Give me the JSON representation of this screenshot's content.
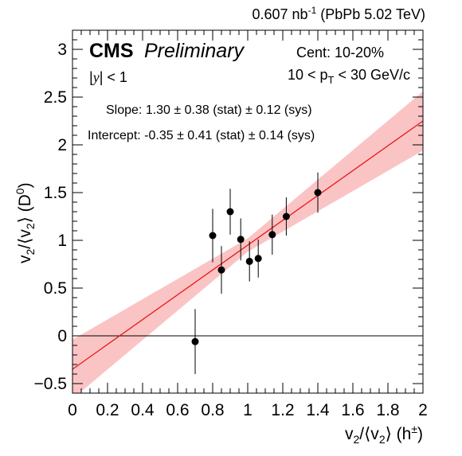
{
  "chart_data": {
    "type": "scatter",
    "title": "",
    "xlabel": "v2/⟨v2⟩ (h±)",
    "ylabel": "v2/⟨v2⟩ (D0)",
    "xlim": [
      0,
      2
    ],
    "ylim": [
      -0.6,
      3.2
    ],
    "x_ticks": [
      "0",
      "0.2",
      "0.4",
      "0.6",
      "0.8",
      "1",
      "1.2",
      "1.4",
      "1.6",
      "1.8",
      "2"
    ],
    "y_ticks": [
      "−0.5",
      "0",
      "0.5",
      "1",
      "1.5",
      "2",
      "2.5",
      "3"
    ],
    "grid": false,
    "points": [
      {
        "x": 0.7,
        "y": -0.06,
        "err": 0.34
      },
      {
        "x": 0.8,
        "y": 1.05,
        "err": 0.28
      },
      {
        "x": 0.85,
        "y": 0.69,
        "err": 0.25
      },
      {
        "x": 0.9,
        "y": 1.3,
        "err": 0.24
      },
      {
        "x": 0.96,
        "y": 1.01,
        "err": 0.22
      },
      {
        "x": 1.01,
        "y": 0.78,
        "err": 0.21
      },
      {
        "x": 1.06,
        "y": 0.81,
        "err": 0.2
      },
      {
        "x": 1.14,
        "y": 1.06,
        "err": 0.21
      },
      {
        "x": 1.22,
        "y": 1.25,
        "err": 0.2
      },
      {
        "x": 1.4,
        "y": 1.5,
        "err": 0.21
      }
    ],
    "fit": {
      "slope": 1.3,
      "intercept": -0.35,
      "slope_err": 0.38,
      "intercept_err": 0.41,
      "color": "#e8191b",
      "band_color": "#fbc4c4"
    },
    "reference_line_y": 0,
    "annotations": {
      "lumi": "0.607 nb⁻¹ (PbPb 5.02 TeV)",
      "cms": "CMS",
      "preliminary": "Preliminary",
      "cent": "Cent: 10-20%",
      "rapidity": "|y| < 1",
      "pt": "10 < pT < 30 GeV/c",
      "slope_text": "Slope: 1.30 ± 0.38 (stat) ± 0.12 (sys)",
      "intercept_text": "Intercept: -0.35 ± 0.41 (stat) ± 0.14 (sys)"
    }
  }
}
